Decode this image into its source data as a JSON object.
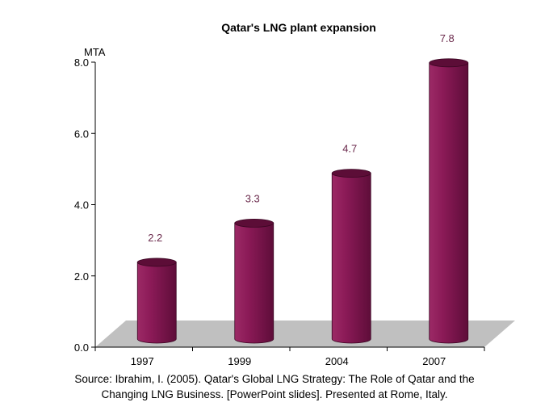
{
  "chart_data": {
    "type": "bar",
    "title": "Qatar's LNG plant expansion",
    "ylabel": "MTA",
    "xlabel": "",
    "categories": [
      "1997",
      "1999",
      "2004",
      "2007"
    ],
    "values": [
      2.2,
      3.3,
      4.7,
      7.8
    ],
    "data_labels": [
      "2.2",
      "3.3",
      "4.7",
      "7.8"
    ],
    "ylim": [
      0,
      8
    ],
    "yticks": [
      "0.0",
      "2.0",
      "4.0",
      "6.0",
      "8.0"
    ],
    "bar_color": "#8b1a57",
    "bar_top_color": "#5c0d37",
    "floor_color": "#c0c0c0",
    "label_color": "#6b2a4c",
    "style": "3d-cylinder"
  },
  "source": {
    "line1": "Source: Ibrahim, I. (2005). Qatar's Global LNG Strategy: The Role of Qatar and the",
    "line2": "Changing LNG Business. [PowerPoint slides]. Presented at Rome, Italy."
  }
}
